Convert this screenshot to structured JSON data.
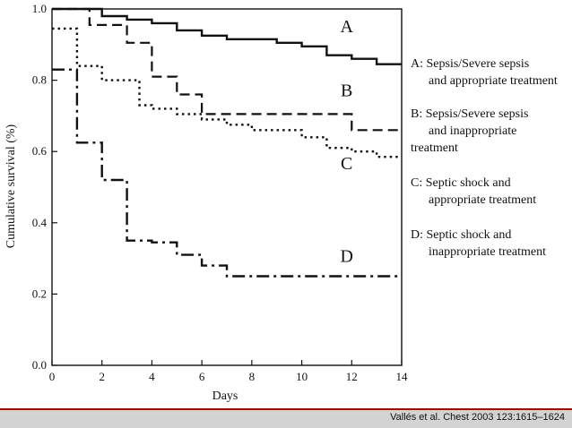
{
  "chart_data": {
    "type": "line",
    "xlabel": "Days",
    "ylabel": "Cumulative survival   (%)",
    "xlim": [
      0,
      14
    ],
    "ylim": [
      0,
      1
    ],
    "x_ticks": [
      0,
      2,
      4,
      6,
      8,
      10,
      12,
      14
    ],
    "y_ticks": [
      "0.0",
      "0.2",
      "0.4",
      "0.6",
      "0.8",
      "1.0"
    ],
    "grid": false,
    "series": [
      {
        "name": "A",
        "style": "solid",
        "points": [
          [
            0,
            1.0
          ],
          [
            2,
            1.0
          ],
          [
            2,
            0.98
          ],
          [
            3,
            0.98
          ],
          [
            3,
            0.97
          ],
          [
            4,
            0.97
          ],
          [
            4,
            0.96
          ],
          [
            5,
            0.96
          ],
          [
            5,
            0.94
          ],
          [
            6,
            0.94
          ],
          [
            6,
            0.925
          ],
          [
            7,
            0.925
          ],
          [
            7,
            0.915
          ],
          [
            9,
            0.915
          ],
          [
            9,
            0.905
          ],
          [
            10,
            0.905
          ],
          [
            10,
            0.895
          ],
          [
            11,
            0.895
          ],
          [
            11,
            0.87
          ],
          [
            12,
            0.87
          ],
          [
            12,
            0.86
          ],
          [
            13,
            0.86
          ],
          [
            13,
            0.845
          ],
          [
            14,
            0.845
          ]
        ]
      },
      {
        "name": "B",
        "style": "dashed",
        "points": [
          [
            0,
            1.0
          ],
          [
            1.5,
            1.0
          ],
          [
            1.5,
            0.955
          ],
          [
            3,
            0.955
          ],
          [
            3,
            0.905
          ],
          [
            4,
            0.905
          ],
          [
            4,
            0.81
          ],
          [
            5,
            0.81
          ],
          [
            5,
            0.76
          ],
          [
            6,
            0.76
          ],
          [
            6,
            0.705
          ],
          [
            12,
            0.705
          ],
          [
            12,
            0.66
          ],
          [
            14,
            0.66
          ]
        ]
      },
      {
        "name": "C",
        "style": "dotted",
        "points": [
          [
            0,
            0.945
          ],
          [
            1,
            0.945
          ],
          [
            1,
            0.84
          ],
          [
            2,
            0.84
          ],
          [
            2,
            0.8
          ],
          [
            3.5,
            0.8
          ],
          [
            3.5,
            0.73
          ],
          [
            4,
            0.73
          ],
          [
            4,
            0.72
          ],
          [
            5,
            0.72
          ],
          [
            5,
            0.705
          ],
          [
            6,
            0.705
          ],
          [
            6,
            0.69
          ],
          [
            7,
            0.69
          ],
          [
            7,
            0.675
          ],
          [
            8,
            0.675
          ],
          [
            8,
            0.66
          ],
          [
            10,
            0.66
          ],
          [
            10,
            0.64
          ],
          [
            11,
            0.64
          ],
          [
            11,
            0.61
          ],
          [
            12,
            0.61
          ],
          [
            12,
            0.6
          ],
          [
            13,
            0.6
          ],
          [
            13,
            0.585
          ],
          [
            14,
            0.585
          ]
        ]
      },
      {
        "name": "D",
        "style": "dash-dot",
        "points": [
          [
            0,
            0.83
          ],
          [
            1,
            0.83
          ],
          [
            1,
            0.625
          ],
          [
            2,
            0.625
          ],
          [
            2,
            0.52
          ],
          [
            3,
            0.52
          ],
          [
            3,
            0.35
          ],
          [
            4,
            0.35
          ],
          [
            4,
            0.345
          ],
          [
            5,
            0.345
          ],
          [
            5,
            0.31
          ],
          [
            6,
            0.31
          ],
          [
            6,
            0.28
          ],
          [
            7,
            0.28
          ],
          [
            7,
            0.25
          ],
          [
            14,
            0.25
          ]
        ]
      }
    ],
    "curve_labels": [
      {
        "text": "A",
        "x": 11.8,
        "y": 0.935
      },
      {
        "text": "B",
        "x": 11.8,
        "y": 0.755
      },
      {
        "text": "C",
        "x": 11.8,
        "y": 0.55
      },
      {
        "text": "D",
        "x": 11.8,
        "y": 0.29
      }
    ],
    "legend": [
      {
        "l1": "A: Sepsis/Severe sepsis",
        "l2": "and appropriate treatment",
        "l3": ""
      },
      {
        "l1": "B: Sepsis/Severe sepsis",
        "l2": "and inappropriate",
        "l3": "treatment"
      },
      {
        "l1": "C: Septic shock and",
        "l2": "appropriate treatment",
        "l3": ""
      },
      {
        "l1": "D: Septic shock and",
        "l2": "inappropriate treatment",
        "l3": ""
      }
    ]
  },
  "footer": {
    "citation": "Vallés et al. Chest 2003 123:1615–1624"
  }
}
